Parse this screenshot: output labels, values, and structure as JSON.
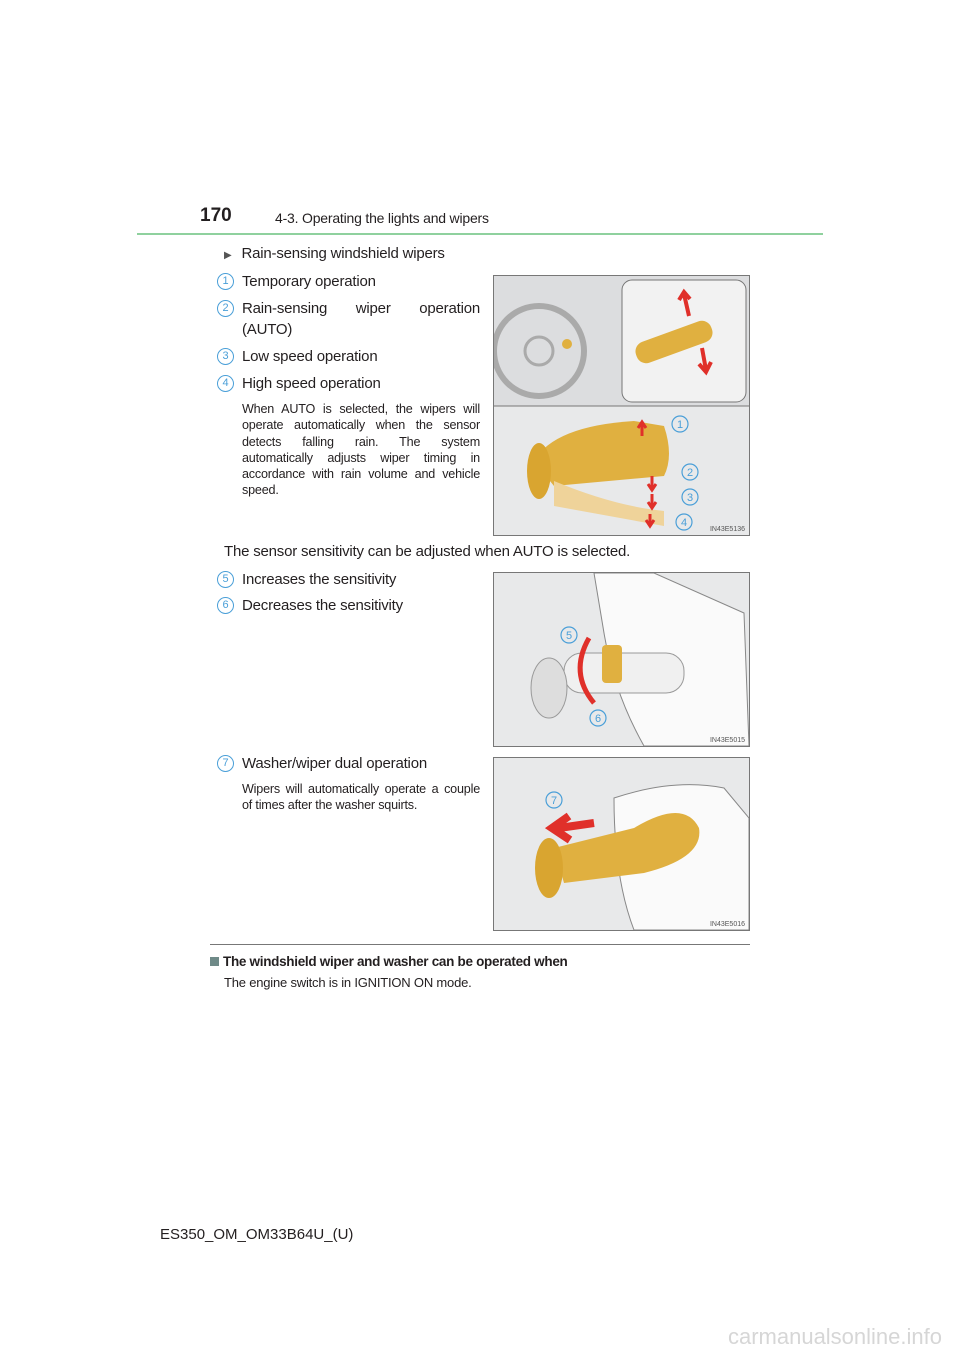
{
  "header": {
    "page_number": "170",
    "section": "4-3. Operating the lights and wipers"
  },
  "rain_sensing": {
    "title": "Rain-sensing windshield wipers",
    "items": [
      {
        "num": "1",
        "label": "Temporary operation"
      },
      {
        "num": "2",
        "label": "Rain-sensing wiper operation (AUTO)"
      },
      {
        "num": "3",
        "label": "Low speed operation"
      },
      {
        "num": "4",
        "label": "High speed operation"
      }
    ],
    "note": "When AUTO is selected, the wipers will operate automatically when the sensor detects falling rain. The system automatically adjusts wiper timing in accordance with rain volume and vehicle speed.",
    "figure_code": "IN43E5136"
  },
  "sensitivity": {
    "intro": "The sensor sensitivity can be adjusted when AUTO is selected.",
    "items": [
      {
        "num": "5",
        "label": "Increases the sensitivity"
      },
      {
        "num": "6",
        "label": "Decreases the sensitivity"
      }
    ],
    "figure_code": "IN43E5015"
  },
  "washer": {
    "item": {
      "num": "7",
      "label": "Washer/wiper dual operation"
    },
    "note": "Wipers will automatically operate a couple of times after the washer squirts.",
    "figure_code": "IN43E5016"
  },
  "info": {
    "title": "The windshield wiper and washer can be operated when",
    "text": "The engine switch is in IGNITION ON mode."
  },
  "footer": {
    "doc_code": "ES350_OM_OM33B64U_(U)"
  },
  "watermark": "carmanualsonline.info",
  "colors": {
    "accent_line": "#8fd19e",
    "callout": "#4a9fd8",
    "lever": "#e0b040",
    "arrow": "#e0302a"
  }
}
